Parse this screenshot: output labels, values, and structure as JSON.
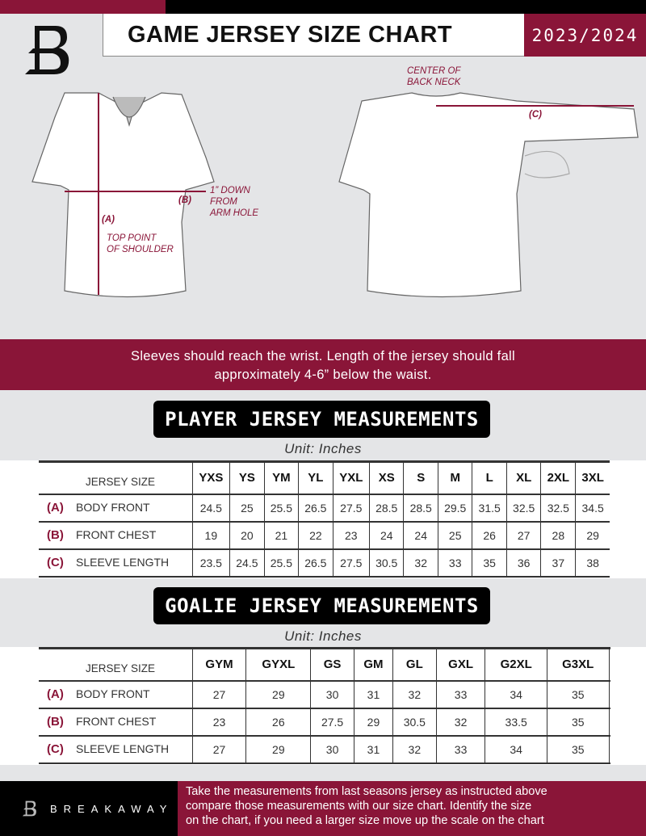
{
  "header": {
    "title": "GAME JERSEY SIZE CHART",
    "season": "2023/2024"
  },
  "colors": {
    "accent": "#8a1538",
    "background": "#e4e5e7",
    "dark": "#000000"
  },
  "diagram": {
    "center_back_neck": [
      "CENTER OF",
      "BACK NECK"
    ],
    "label_a": "(A)",
    "label_b": "(B)",
    "label_c": "(C)",
    "arm_hole": [
      "1” DOWN",
      "FROM",
      "ARM HOLE"
    ],
    "top_shoulder": [
      "TOP POINT",
      "OF SHOULDER"
    ]
  },
  "banner": [
    "Sleeves should reach the wrist. Length of the jersey should fall",
    "approximately 4-6” below the waist."
  ],
  "player": {
    "title": "PLAYER JERSEY MEASUREMENTS",
    "unit": "Unit: Inches",
    "size_header": "JERSEY SIZE",
    "sizes": [
      "YXS",
      "YS",
      "YM",
      "YL",
      "YXL",
      "XS",
      "S",
      "M",
      "L",
      "XL",
      "2XL",
      "3XL"
    ],
    "rows": [
      {
        "letter": "(A)",
        "label": "BODY FRONT",
        "values": [
          "24.5",
          "25",
          "25.5",
          "26.5",
          "27.5",
          "28.5",
          "28.5",
          "29.5",
          "31.5",
          "32.5",
          "32.5",
          "34.5"
        ]
      },
      {
        "letter": "(B)",
        "label": "FRONT CHEST",
        "values": [
          "19",
          "20",
          "21",
          "22",
          "23",
          "24",
          "24",
          "25",
          "26",
          "27",
          "28",
          "29"
        ]
      },
      {
        "letter": "(C)",
        "label": "SLEEVE LENGTH",
        "values": [
          "23.5",
          "24.5",
          "25.5",
          "26.5",
          "27.5",
          "30.5",
          "32",
          "33",
          "35",
          "36",
          "37",
          "38"
        ]
      }
    ]
  },
  "goalie": {
    "title": "GOALIE JERSEY MEASUREMENTS",
    "unit": "Unit: Inches",
    "size_header": "JERSEY SIZE",
    "sizes": [
      "GYM",
      "GYXL",
      "GS",
      "GM",
      "GL",
      "GXL",
      "G2XL",
      "G3XL",
      ""
    ],
    "rows": [
      {
        "letter": "(A)",
        "label": "BODY FRONT",
        "values": [
          "27",
          "29",
          "30",
          "31",
          "32",
          "33",
          "34",
          "35",
          ""
        ]
      },
      {
        "letter": "(B)",
        "label": "FRONT CHEST",
        "values": [
          "23",
          "26",
          "27.5",
          "29",
          "30.5",
          "32",
          "33.5",
          "35",
          ""
        ]
      },
      {
        "letter": "(C)",
        "label": "SLEEVE LENGTH",
        "values": [
          "27",
          "29",
          "30",
          "31",
          "32",
          "33",
          "34",
          "35",
          ""
        ]
      }
    ]
  },
  "footer": {
    "brand": "BREAKAWAY",
    "note": [
      "Take the measurements from last seasons jersey as instructed above",
      "compare those measurements  with our size chart. Identify the size",
      "on the chart, if you need a larger size move up the scale on the chart"
    ]
  }
}
